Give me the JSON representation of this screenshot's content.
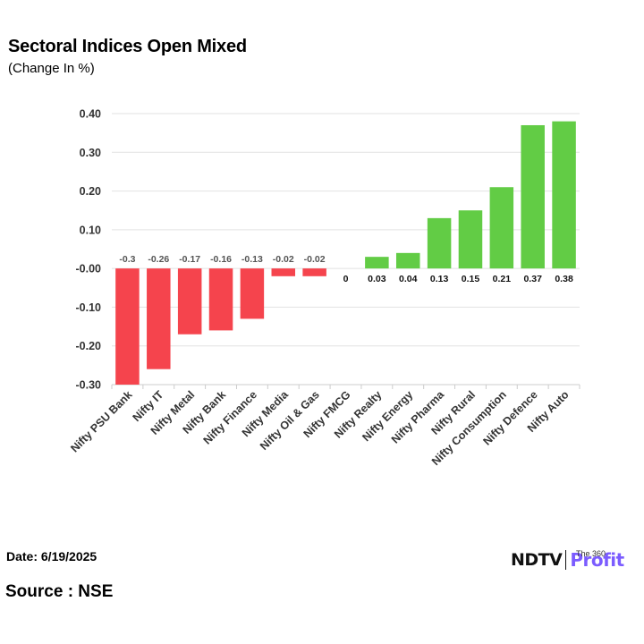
{
  "header": {
    "title": "Sectoral Indices Open Mixed",
    "subtitle": "(Change In %)"
  },
  "footer": {
    "date": "Date: 6/19/2025",
    "source": "Source : NSE",
    "logo_ndtv": "NDTV",
    "logo_profit": "Profit",
    "logo_tag": "The 360"
  },
  "colors": {
    "negative": "#f5444d",
    "positive": "#62cc45",
    "grid": "#e2e2e2",
    "axis_text": "#333333"
  },
  "chart_data": {
    "type": "bar",
    "title": "Sectoral Indices Open Mixed",
    "subtitle": "(Change In %)",
    "xlabel": "",
    "ylabel": "",
    "ylim": [
      -0.3,
      0.4
    ],
    "yticks": [
      0.4,
      0.3,
      0.2,
      0.1,
      0.0,
      -0.1,
      -0.2,
      -0.3
    ],
    "ytick_labels": [
      "0.40",
      "0.30",
      "0.20",
      "0.10",
      "-0.00",
      "-0.10",
      "-0.20",
      "-0.30"
    ],
    "grid": true,
    "categories": [
      "Nifty PSU Bank",
      "Nifty IT",
      "Nifty Metal",
      "Nifty Bank",
      "Nifty Finance",
      "Nifty Media",
      "Nifty Oil & Gas",
      "Nifty FMCG",
      "Nifty Realty",
      "Nifty Energy",
      "Nifty Pharma",
      "Nifty Rural",
      "Nifty Consumption",
      "Nifty Defence",
      "Nifty Auto"
    ],
    "values": [
      -0.3,
      -0.26,
      -0.17,
      -0.16,
      -0.13,
      -0.02,
      -0.02,
      0,
      0.03,
      0.04,
      0.13,
      0.15,
      0.21,
      0.37,
      0.38
    ],
    "value_labels": [
      "-0.3",
      "-0.26",
      "-0.17",
      "-0.16",
      "-0.13",
      "-0.02",
      "-0.02",
      "0",
      "0.03",
      "0.04",
      "0.13",
      "0.15",
      "0.21",
      "0.37",
      "0.38"
    ]
  }
}
